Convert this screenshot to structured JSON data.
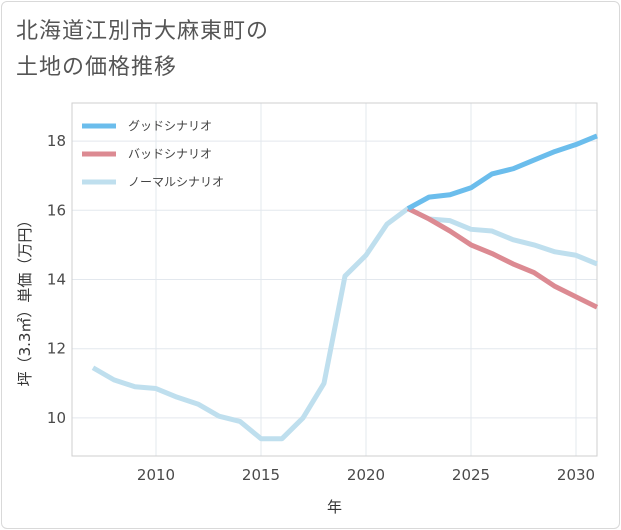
{
  "title": {
    "line1": "北海道江別市大麻東町の",
    "line2": "土地の価格推移"
  },
  "chart_data": {
    "type": "line",
    "xlabel": "年",
    "ylabel": "坪（3.3㎡）単価（万円）",
    "xlim": [
      2006,
      2031
    ],
    "ylim": [
      8.9,
      19.1
    ],
    "xticks": [
      2010,
      2015,
      2020,
      2025,
      2030
    ],
    "yticks": [
      10,
      12,
      14,
      16,
      18
    ],
    "grid": true,
    "legend_position": "top-left",
    "series": [
      {
        "name": "グッドシナリオ",
        "color": "#6bbdec",
        "x": [
          2022,
          2023,
          2024,
          2025,
          2026,
          2027,
          2028,
          2029,
          2030,
          2031
        ],
        "y": [
          16.05,
          16.38,
          16.45,
          16.65,
          17.05,
          17.2,
          17.45,
          17.7,
          17.9,
          18.15
        ]
      },
      {
        "name": "バッドシナリオ",
        "color": "#dc8a92",
        "x": [
          2022,
          2023,
          2024,
          2025,
          2026,
          2027,
          2028,
          2029,
          2030,
          2031
        ],
        "y": [
          16.05,
          15.75,
          15.4,
          15.0,
          14.75,
          14.45,
          14.2,
          13.8,
          13.5,
          13.2
        ]
      },
      {
        "name": "ノーマルシナリオ",
        "color": "#bfdfee",
        "x": [
          2007,
          2008,
          2009,
          2010,
          2011,
          2012,
          2013,
          2014,
          2015,
          2016,
          2017,
          2018,
          2019,
          2020,
          2021,
          2022,
          2023,
          2024,
          2025,
          2026,
          2027,
          2028,
          2029,
          2030,
          2031
        ],
        "y": [
          11.45,
          11.1,
          10.9,
          10.85,
          10.6,
          10.4,
          10.05,
          9.9,
          9.4,
          9.4,
          10.0,
          11.0,
          14.1,
          14.7,
          15.6,
          16.05,
          15.75,
          15.7,
          15.45,
          15.4,
          15.15,
          15.0,
          14.8,
          14.7,
          14.45
        ]
      }
    ]
  }
}
